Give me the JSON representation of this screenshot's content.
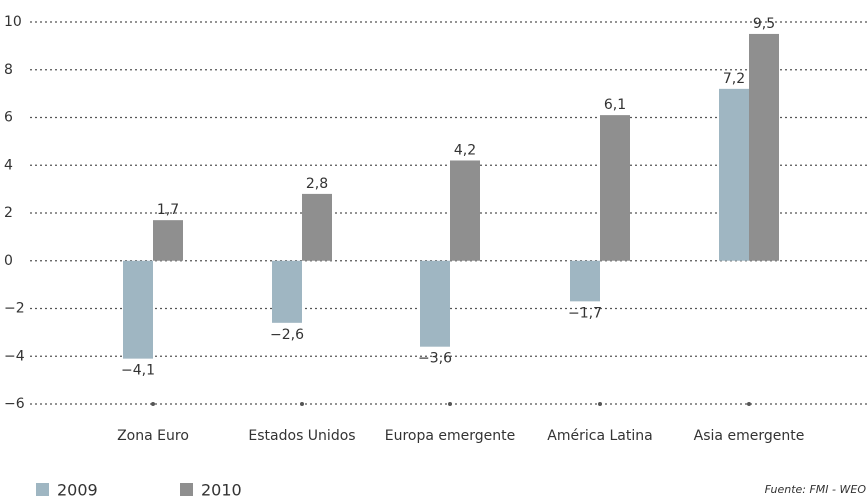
{
  "chart_data": {
    "type": "bar",
    "categories": [
      "Zona Euro",
      "Estados Unidos",
      "Europa emergente",
      "América Latina",
      "Asia emergente"
    ],
    "series": [
      {
        "name": "2009",
        "color": "#9fb6c2",
        "values": [
          -4.1,
          -2.6,
          -3.6,
          -1.7,
          7.2
        ],
        "value_labels": [
          "−4,1",
          "−2,6",
          "−3,6",
          "−1,7",
          "7,2"
        ]
      },
      {
        "name": "2010",
        "color": "#8f8f8f",
        "values": [
          1.7,
          2.8,
          4.2,
          6.1,
          9.5
        ],
        "value_labels": [
          "1,7",
          "2,8",
          "4,2",
          "6,1",
          "9,5"
        ]
      }
    ],
    "ylim": [
      -6,
      10
    ],
    "yticks": [
      {
        "value": -6,
        "label": "−6"
      },
      {
        "value": -4,
        "label": "−4"
      },
      {
        "value": -2,
        "label": "−2"
      },
      0,
      2,
      4,
      6,
      8,
      10
    ],
    "grid": true,
    "legend": "bottom-left",
    "source": "Fuente: FMI - WEO"
  }
}
